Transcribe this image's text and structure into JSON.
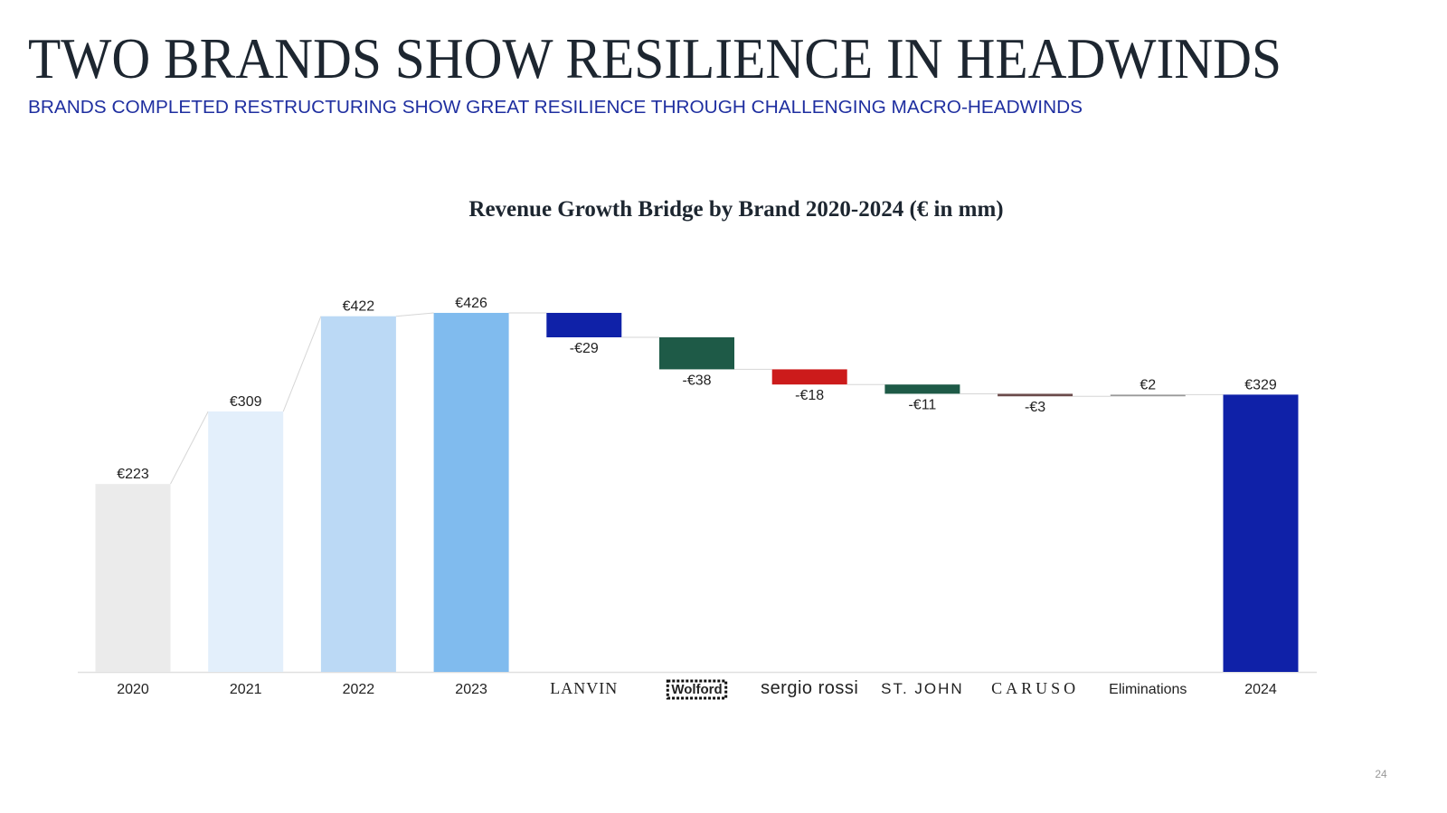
{
  "header": {
    "title": "TWO BRANDS SHOW RESILIENCE IN HEADWINDS",
    "subtitle": "BRANDS COMPLETED RESTRUCTURING SHOW GREAT RESILIENCE THROUGH CHALLENGING MACRO-HEADWINDS"
  },
  "page_number": "24",
  "chart_data": {
    "type": "waterfall",
    "title": "Revenue Growth Bridge by Brand 2020-2024 (€ in mm)",
    "categories": [
      "2020",
      "2021",
      "2022",
      "2023",
      "LANVIN",
      "Wolford",
      "sergio rossi",
      "ST. JOHN",
      "CARUSO",
      "Eliminations",
      "2024"
    ],
    "values": [
      223,
      309,
      422,
      426,
      -29,
      -38,
      -18,
      -11,
      -3,
      2,
      329
    ],
    "value_labels": [
      "€223",
      "€309",
      "€422",
      "€426",
      "-€29",
      "-€38",
      "-€18",
      "-€11",
      "-€3",
      "€2",
      "€329"
    ],
    "totals": [
      true,
      true,
      true,
      true,
      false,
      false,
      false,
      false,
      false,
      false,
      true
    ],
    "colors": [
      "#ebebeb",
      "#e3effb",
      "#bbd9f5",
      "#80bbee",
      "#0f21a8",
      "#1e5a47",
      "#cc1b1b",
      "#1e5a47",
      "#6b4c4c",
      "#9a9a9a",
      "#0f21a8"
    ]
  }
}
